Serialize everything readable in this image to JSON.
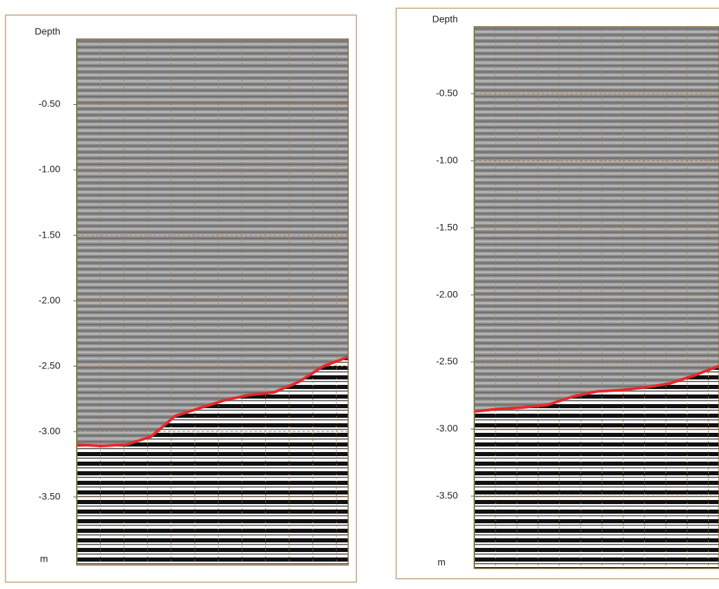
{
  "chart_data": [
    {
      "type": "line",
      "y_label": "Depth",
      "y_unit": "m",
      "ylim": [
        -4.02,
        0
      ],
      "yticks": [
        {
          "value": -0.5,
          "label": "-0.50"
        },
        {
          "value": -1.0,
          "label": "-1.00"
        },
        {
          "value": -1.5,
          "label": "-1.50"
        },
        {
          "value": -2.0,
          "label": "-2.00"
        },
        {
          "value": -2.5,
          "label": "-2.50"
        },
        {
          "value": -3.0,
          "label": "-3.00"
        },
        {
          "value": -3.5,
          "label": "-3.50"
        }
      ],
      "grid": true,
      "categories": [
        null,
        null,
        null,
        null,
        null,
        null,
        null,
        null,
        null,
        null,
        null,
        null
      ],
      "series": [
        {
          "color": "#e8282b",
          "values": [
            -3.1,
            -3.11,
            -3.1,
            -3.04,
            -2.88,
            -2.82,
            -2.76,
            -2.72,
            -2.7,
            -2.62,
            -2.5,
            -2.43
          ]
        }
      ]
    },
    {
      "type": "line",
      "y_label": "Depth",
      "y_unit": "m",
      "ylim": [
        -4.04,
        0
      ],
      "yticks": [
        {
          "value": -0.5,
          "label": "-0.50"
        },
        {
          "value": -1.0,
          "label": "-1.00"
        },
        {
          "value": -1.5,
          "label": "-1.50"
        },
        {
          "value": -2.0,
          "label": "-2.00"
        },
        {
          "value": -2.5,
          "label": "-2.50"
        },
        {
          "value": -3.0,
          "label": "-3.00"
        },
        {
          "value": -3.5,
          "label": "-3.50"
        }
      ],
      "grid": true,
      "categories": [
        null,
        null,
        null,
        null,
        null,
        null,
        null,
        null,
        null,
        null,
        null
      ],
      "series": [
        {
          "color": "#e8282b",
          "values": [
            -2.87,
            -2.85,
            -2.84,
            -2.82,
            -2.76,
            -2.72,
            -2.71,
            -2.69,
            -2.66,
            -2.6,
            -2.53
          ]
        }
      ]
    }
  ]
}
